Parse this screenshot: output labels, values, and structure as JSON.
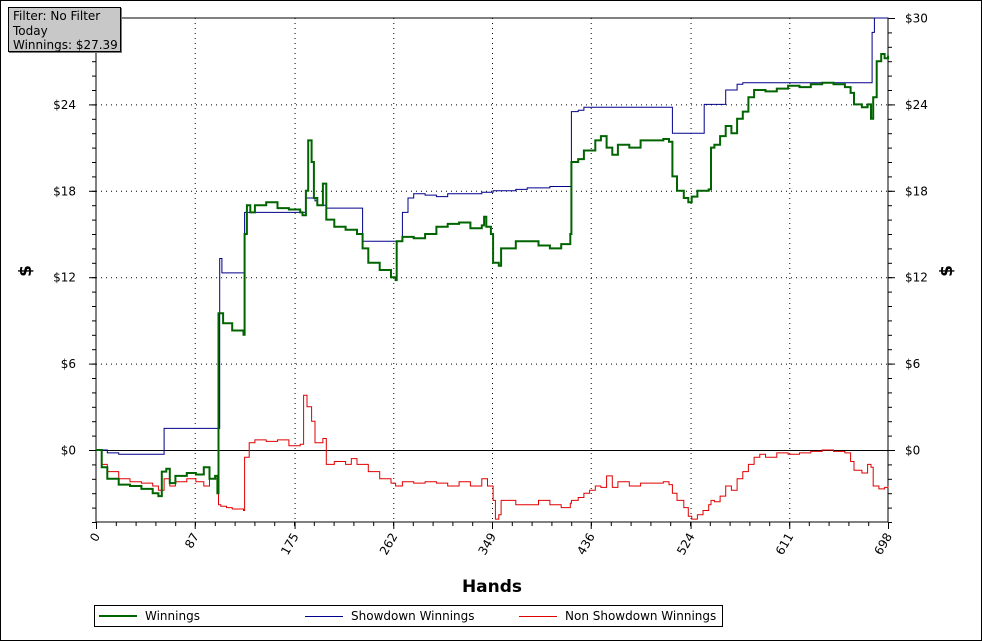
{
  "info_box": {
    "filter": "Filter: No Filter",
    "period": "Today",
    "winnings": "Winnings: $27.39"
  },
  "legend": [
    {
      "label": "Winnings",
      "color": "#006400"
    },
    {
      "label": "Showdown Winnings",
      "color": "#00008b"
    },
    {
      "label": "Non Showdown Winnings",
      "color": "#e00000"
    }
  ],
  "chart_data": {
    "type": "line",
    "xlabel": "Hands",
    "ylabel": "$",
    "ylabel_right": "$",
    "x_ticks": [
      "0",
      "87",
      "175",
      "262",
      "349",
      "436",
      "524",
      "611",
      "698"
    ],
    "y_ticks": [
      "$0",
      "$6",
      "$12",
      "$18",
      "$24",
      "$30"
    ],
    "xlim": [
      0,
      698
    ],
    "ylim": [
      -5,
      30
    ],
    "grid": true,
    "legend_position": "bottom",
    "series": [
      {
        "name": "Winnings",
        "color": "#006400",
        "points": [
          [
            0,
            0
          ],
          [
            5,
            -1.2
          ],
          [
            10,
            -2.0
          ],
          [
            20,
            -2.4
          ],
          [
            30,
            -2.5
          ],
          [
            40,
            -2.7
          ],
          [
            50,
            -3.0
          ],
          [
            55,
            -3.2
          ],
          [
            58,
            -1.5
          ],
          [
            62,
            -1.3
          ],
          [
            65,
            -2.3
          ],
          [
            70,
            -1.8
          ],
          [
            80,
            -1.6
          ],
          [
            88,
            -1.7
          ],
          [
            95,
            -1.2
          ],
          [
            100,
            -2.0
          ],
          [
            105,
            -1.8
          ],
          [
            107,
            -3.0
          ],
          [
            108,
            9.5
          ],
          [
            112,
            8.8
          ],
          [
            120,
            8.3
          ],
          [
            130,
            8.0
          ],
          [
            131,
            15.0
          ],
          [
            133,
            17.0
          ],
          [
            136,
            16.5
          ],
          [
            140,
            17.0
          ],
          [
            150,
            17.2
          ],
          [
            160,
            16.8
          ],
          [
            170,
            16.7
          ],
          [
            180,
            16.5
          ],
          [
            182,
            16.3
          ],
          [
            185,
            18.0
          ],
          [
            187,
            21.5
          ],
          [
            190,
            20.0
          ],
          [
            192,
            17.5
          ],
          [
            195,
            17.0
          ],
          [
            200,
            18.5
          ],
          [
            203,
            16.0
          ],
          [
            210,
            15.5
          ],
          [
            220,
            15.3
          ],
          [
            230,
            15.0
          ],
          [
            235,
            14.0
          ],
          [
            240,
            13.0
          ],
          [
            250,
            12.5
          ],
          [
            260,
            12.0
          ],
          [
            264,
            11.8
          ],
          [
            265,
            14.5
          ],
          [
            270,
            14.8
          ],
          [
            280,
            14.7
          ],
          [
            290,
            15.0
          ],
          [
            300,
            15.5
          ],
          [
            310,
            15.7
          ],
          [
            320,
            15.8
          ],
          [
            330,
            15.4
          ],
          [
            340,
            15.6
          ],
          [
            342,
            16.2
          ],
          [
            344,
            15.5
          ],
          [
            348,
            15.0
          ],
          [
            350,
            13.0
          ],
          [
            355,
            12.8
          ],
          [
            357,
            14.0
          ],
          [
            370,
            14.5
          ],
          [
            390,
            14.2
          ],
          [
            400,
            14.0
          ],
          [
            410,
            14.3
          ],
          [
            418,
            15.0
          ],
          [
            419,
            20.0
          ],
          [
            425,
            20.2
          ],
          [
            430,
            20.8
          ],
          [
            440,
            21.5
          ],
          [
            445,
            21.8
          ],
          [
            450,
            21.0
          ],
          [
            455,
            20.5
          ],
          [
            460,
            21.2
          ],
          [
            470,
            21.0
          ],
          [
            480,
            21.5
          ],
          [
            490,
            21.5
          ],
          [
            500,
            21.6
          ],
          [
            505,
            21.4
          ],
          [
            508,
            19.0
          ],
          [
            512,
            18.0
          ],
          [
            518,
            17.5
          ],
          [
            522,
            17.2
          ],
          [
            525,
            17.6
          ],
          [
            530,
            18.0
          ],
          [
            535,
            18.0
          ],
          [
            540,
            18.1
          ],
          [
            542,
            21.0
          ],
          [
            545,
            21.2
          ],
          [
            550,
            21.8
          ],
          [
            555,
            22.5
          ],
          [
            560,
            22.0
          ],
          [
            565,
            23.0
          ],
          [
            570,
            23.5
          ],
          [
            575,
            24.5
          ],
          [
            580,
            25.0
          ],
          [
            585,
            25.0
          ],
          [
            590,
            24.9
          ],
          [
            600,
            25.1
          ],
          [
            610,
            25.3
          ],
          [
            620,
            25.2
          ],
          [
            630,
            25.4
          ],
          [
            640,
            25.5
          ],
          [
            650,
            25.4
          ],
          [
            660,
            25.2
          ],
          [
            665,
            24.8
          ],
          [
            668,
            24.0
          ],
          [
            675,
            23.8
          ],
          [
            680,
            24.0
          ],
          [
            683,
            23.0
          ],
          [
            685,
            24.5
          ],
          [
            688,
            27.0
          ],
          [
            692,
            27.5
          ],
          [
            695,
            27.2
          ],
          [
            698,
            27.39
          ]
        ]
      },
      {
        "name": "Showdown Winnings",
        "color": "#00008b",
        "points": [
          [
            0,
            0
          ],
          [
            10,
            -0.2
          ],
          [
            20,
            -0.3
          ],
          [
            30,
            -0.3
          ],
          [
            40,
            -0.3
          ],
          [
            50,
            -0.3
          ],
          [
            55,
            -0.3
          ],
          [
            60,
            1.5
          ],
          [
            70,
            1.5
          ],
          [
            80,
            1.5
          ],
          [
            90,
            1.5
          ],
          [
            100,
            1.5
          ],
          [
            108,
            1.5
          ],
          [
            109,
            13.3
          ],
          [
            111,
            12.3
          ],
          [
            120,
            12.3
          ],
          [
            130,
            12.3
          ],
          [
            131,
            16.5
          ],
          [
            140,
            16.5
          ],
          [
            150,
            16.5
          ],
          [
            160,
            16.5
          ],
          [
            170,
            16.5
          ],
          [
            180,
            16.5
          ],
          [
            185,
            17.5
          ],
          [
            190,
            17.5
          ],
          [
            193,
            17.3
          ],
          [
            195,
            17.0
          ],
          [
            203,
            16.8
          ],
          [
            210,
            16.8
          ],
          [
            220,
            16.8
          ],
          [
            230,
            16.8
          ],
          [
            235,
            14.5
          ],
          [
            250,
            14.5
          ],
          [
            264,
            14.5
          ],
          [
            270,
            16.5
          ],
          [
            275,
            17.5
          ],
          [
            280,
            17.8
          ],
          [
            290,
            17.7
          ],
          [
            300,
            17.6
          ],
          [
            310,
            17.8
          ],
          [
            330,
            17.8
          ],
          [
            340,
            17.9
          ],
          [
            350,
            18.0
          ],
          [
            360,
            18.0
          ],
          [
            370,
            18.1
          ],
          [
            380,
            18.2
          ],
          [
            390,
            18.2
          ],
          [
            400,
            18.3
          ],
          [
            410,
            18.3
          ],
          [
            418,
            18.3
          ],
          [
            419,
            23.5
          ],
          [
            425,
            23.6
          ],
          [
            430,
            23.8
          ],
          [
            440,
            23.8
          ],
          [
            450,
            23.8
          ],
          [
            460,
            23.8
          ],
          [
            470,
            23.8
          ],
          [
            480,
            23.8
          ],
          [
            490,
            23.8
          ],
          [
            500,
            23.8
          ],
          [
            505,
            23.8
          ],
          [
            508,
            22.0
          ],
          [
            520,
            22.0
          ],
          [
            530,
            22.0
          ],
          [
            535,
            22.0
          ],
          [
            536,
            24.0
          ],
          [
            545,
            24.0
          ],
          [
            550,
            24.0
          ],
          [
            555,
            25.0
          ],
          [
            560,
            25.0
          ],
          [
            565,
            25.4
          ],
          [
            570,
            25.5
          ],
          [
            580,
            25.5
          ],
          [
            600,
            25.5
          ],
          [
            620,
            25.5
          ],
          [
            640,
            25.5
          ],
          [
            660,
            25.5
          ],
          [
            670,
            25.5
          ],
          [
            683,
            25.5
          ],
          [
            684,
            29.0
          ],
          [
            686,
            30.0
          ],
          [
            698,
            30.0
          ]
        ]
      },
      {
        "name": "Non Showdown Winnings",
        "color": "#e00000",
        "points": [
          [
            0,
            0
          ],
          [
            5,
            -1.0
          ],
          [
            10,
            -1.5
          ],
          [
            20,
            -2.0
          ],
          [
            30,
            -2.2
          ],
          [
            40,
            -2.3
          ],
          [
            50,
            -2.5
          ],
          [
            55,
            -2.8
          ],
          [
            60,
            -2.0
          ],
          [
            65,
            -2.5
          ],
          [
            70,
            -2.2
          ],
          [
            80,
            -2.0
          ],
          [
            88,
            -2.2
          ],
          [
            95,
            -2.5
          ],
          [
            100,
            -2.0
          ],
          [
            107,
            -2.0
          ],
          [
            108,
            -3.8
          ],
          [
            110,
            -3.9
          ],
          [
            115,
            -4.0
          ],
          [
            120,
            -4.1
          ],
          [
            130,
            -4.2
          ],
          [
            131,
            -0.5
          ],
          [
            135,
            0.5
          ],
          [
            140,
            0.7
          ],
          [
            150,
            0.6
          ],
          [
            160,
            0.7
          ],
          [
            170,
            0.3
          ],
          [
            180,
            0.4
          ],
          [
            183,
            3.8
          ],
          [
            186,
            3.0
          ],
          [
            190,
            2.0
          ],
          [
            193,
            0.5
          ],
          [
            200,
            0.8
          ],
          [
            203,
            -1.0
          ],
          [
            210,
            -0.8
          ],
          [
            220,
            -1.0
          ],
          [
            225,
            -0.6
          ],
          [
            230,
            -1.0
          ],
          [
            240,
            -1.5
          ],
          [
            250,
            -2.0
          ],
          [
            260,
            -2.3
          ],
          [
            264,
            -2.5
          ],
          [
            270,
            -2.2
          ],
          [
            280,
            -2.3
          ],
          [
            290,
            -2.2
          ],
          [
            300,
            -2.3
          ],
          [
            310,
            -2.5
          ],
          [
            320,
            -2.2
          ],
          [
            330,
            -2.5
          ],
          [
            340,
            -2.0
          ],
          [
            345,
            -2.5
          ],
          [
            350,
            -3.5
          ],
          [
            352,
            -4.8
          ],
          [
            355,
            -4.5
          ],
          [
            357,
            -3.5
          ],
          [
            370,
            -3.8
          ],
          [
            390,
            -3.5
          ],
          [
            400,
            -3.8
          ],
          [
            410,
            -4.0
          ],
          [
            418,
            -3.7
          ],
          [
            419,
            -3.5
          ],
          [
            425,
            -3.3
          ],
          [
            430,
            -3.0
          ],
          [
            435,
            -2.8
          ],
          [
            440,
            -2.5
          ],
          [
            445,
            -2.6
          ],
          [
            450,
            -1.8
          ],
          [
            455,
            -2.6
          ],
          [
            460,
            -2.2
          ],
          [
            470,
            -2.5
          ],
          [
            480,
            -2.3
          ],
          [
            490,
            -2.3
          ],
          [
            500,
            -2.2
          ],
          [
            505,
            -2.4
          ],
          [
            508,
            -3.0
          ],
          [
            512,
            -3.5
          ],
          [
            518,
            -4.0
          ],
          [
            522,
            -4.6
          ],
          [
            525,
            -4.8
          ],
          [
            530,
            -4.5
          ],
          [
            535,
            -4.2
          ],
          [
            540,
            -3.8
          ],
          [
            542,
            -3.5
          ],
          [
            545,
            -3.6
          ],
          [
            550,
            -3.2
          ],
          [
            555,
            -2.5
          ],
          [
            560,
            -2.8
          ],
          [
            565,
            -2.0
          ],
          [
            570,
            -1.5
          ],
          [
            575,
            -1.0
          ],
          [
            580,
            -0.5
          ],
          [
            585,
            -0.3
          ],
          [
            590,
            -0.5
          ],
          [
            600,
            -0.2
          ],
          [
            610,
            -0.3
          ],
          [
            620,
            -0.2
          ],
          [
            630,
            -0.1
          ],
          [
            640,
            0.0
          ],
          [
            650,
            -0.1
          ],
          [
            660,
            -0.2
          ],
          [
            665,
            -0.8
          ],
          [
            668,
            -1.4
          ],
          [
            675,
            -1.6
          ],
          [
            680,
            -1.0
          ],
          [
            683,
            -1.2
          ],
          [
            685,
            -2.5
          ],
          [
            690,
            -2.7
          ],
          [
            695,
            -2.6
          ],
          [
            698,
            -2.5
          ]
        ]
      }
    ]
  }
}
